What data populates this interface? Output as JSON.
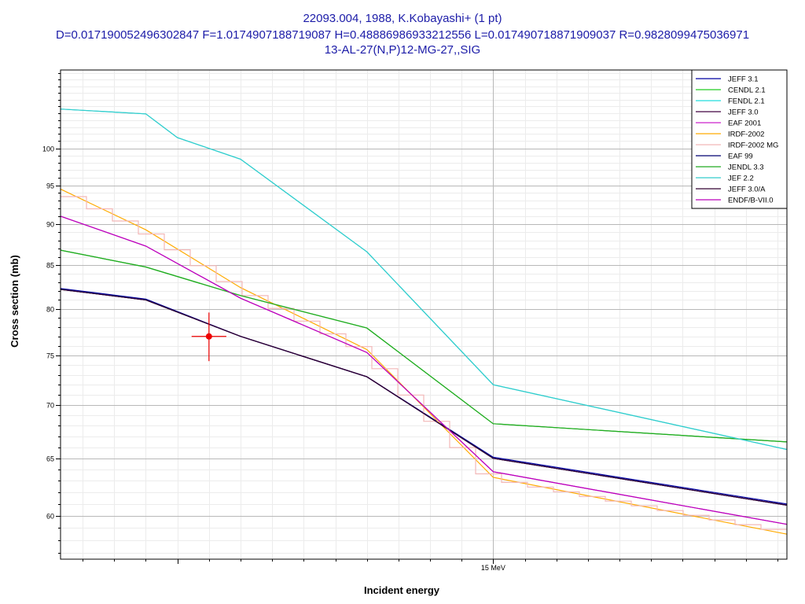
{
  "chart_data": {
    "type": "line",
    "title_lines": [
      "22093.004, 1988, K.Kobayashi+ (1 pt)",
      "D=0.017190052496302847 F=1.0174907188719087 H=0.48886986933212556 L=0.017490718871909037 R=0.9828099475036971",
      "13-AL-27(N,P)12-MG-27,,SIG"
    ],
    "xlabel": "Incident energy",
    "ylabel": "Cross section (mb)",
    "xunit": "MeV",
    "xscale": "linear",
    "yscale": "log",
    "xlim": [
      13.63,
      15.93
    ],
    "ylim": [
      56.5,
      111.5
    ],
    "x_tick_labels": [
      {
        "x": 15,
        "label": "15 MeV"
      }
    ],
    "y_ticks": [
      60,
      65,
      70,
      75,
      80,
      85,
      90,
      95,
      100
    ],
    "grid": true,
    "legend_position": "top-right",
    "series": [
      {
        "name": "JEFF 3.1",
        "color": "#0000a0",
        "x": [
          13.63,
          13.9,
          14.2,
          14.6,
          15.0,
          15.93
        ],
        "y": [
          82.3,
          81.1,
          77.0,
          72.8,
          65.1,
          61.0
        ]
      },
      {
        "name": "CENDL 2.1",
        "color": "#22cc22",
        "x": [
          13.63,
          13.9,
          14.2,
          14.6,
          15.0,
          15.93
        ],
        "y": [
          86.8,
          84.8,
          81.5,
          77.9,
          68.2,
          66.5
        ]
      },
      {
        "name": "FENDL 2.1",
        "color": "#22dddd",
        "x": [
          13.63,
          13.9,
          14.0,
          14.2,
          14.6,
          15.0,
          15.93
        ],
        "y": [
          105.6,
          104.9,
          101.5,
          98.5,
          86.6,
          72.0,
          65.8
        ]
      },
      {
        "name": "JEFF 3.0",
        "color": "#400040",
        "x": [
          13.63,
          13.9,
          14.2,
          14.6,
          15.0,
          15.93
        ],
        "y": [
          82.2,
          81.0,
          77.0,
          72.8,
          65.0,
          60.9
        ]
      },
      {
        "name": "EAF 2001",
        "color": "#cc22cc",
        "x": [
          13.63,
          13.9,
          14.2,
          14.6,
          15.0,
          15.93
        ],
        "y": [
          91.0,
          87.3,
          81.2,
          75.3,
          63.8,
          59.3
        ]
      },
      {
        "name": "IRDF-2002",
        "color": "#ffaa00",
        "x": [
          13.63,
          13.9,
          14.2,
          14.6,
          15.0,
          15.93
        ],
        "y": [
          94.5,
          89.3,
          82.4,
          75.6,
          63.3,
          58.5
        ]
      },
      {
        "name": "IRDF-2002 MG",
        "color": "#f2b8b8",
        "x": [
          13.63,
          13.9,
          14.2,
          14.6,
          15.0,
          15.93
        ],
        "y": [
          94.3,
          89.2,
          82.3,
          75.5,
          63.2,
          58.7
        ]
      },
      {
        "name": "EAF 99",
        "color": "#000070",
        "x": [
          13.63,
          13.9,
          14.2,
          14.6,
          15.0,
          15.93
        ],
        "y": [
          82.2,
          81.0,
          77.0,
          72.8,
          65.0,
          60.9
        ]
      },
      {
        "name": "JENDL 3.3",
        "color": "#22aa22",
        "x": [
          13.63,
          13.9,
          14.2,
          14.6,
          15.0,
          15.93
        ],
        "y": [
          86.8,
          84.8,
          81.5,
          77.9,
          68.2,
          66.5
        ]
      },
      {
        "name": "JEF 2.2",
        "color": "#33cccc",
        "x": [
          13.63,
          13.9,
          14.0,
          14.2,
          14.6,
          15.0,
          15.93
        ],
        "y": [
          105.6,
          104.9,
          101.5,
          98.5,
          86.6,
          72.0,
          65.8
        ]
      },
      {
        "name": "JEFF 3.0/A",
        "color": "#300030",
        "x": [
          13.63,
          13.9,
          14.2,
          14.6,
          15.0,
          15.93
        ],
        "y": [
          82.2,
          81.0,
          77.0,
          72.8,
          65.0,
          60.9
        ]
      },
      {
        "name": "ENDF/B-VII.0",
        "color": "#bb00bb",
        "x": [
          13.63,
          13.9,
          14.2,
          14.6,
          15.0,
          15.93
        ],
        "y": [
          91.0,
          87.3,
          81.2,
          75.3,
          63.8,
          59.3
        ]
      }
    ],
    "data_points": [
      {
        "x": 14.1,
        "y": 77.0,
        "xerr": 0.055,
        "yerr": 2.6,
        "color": "#ee0000"
      }
    ]
  }
}
